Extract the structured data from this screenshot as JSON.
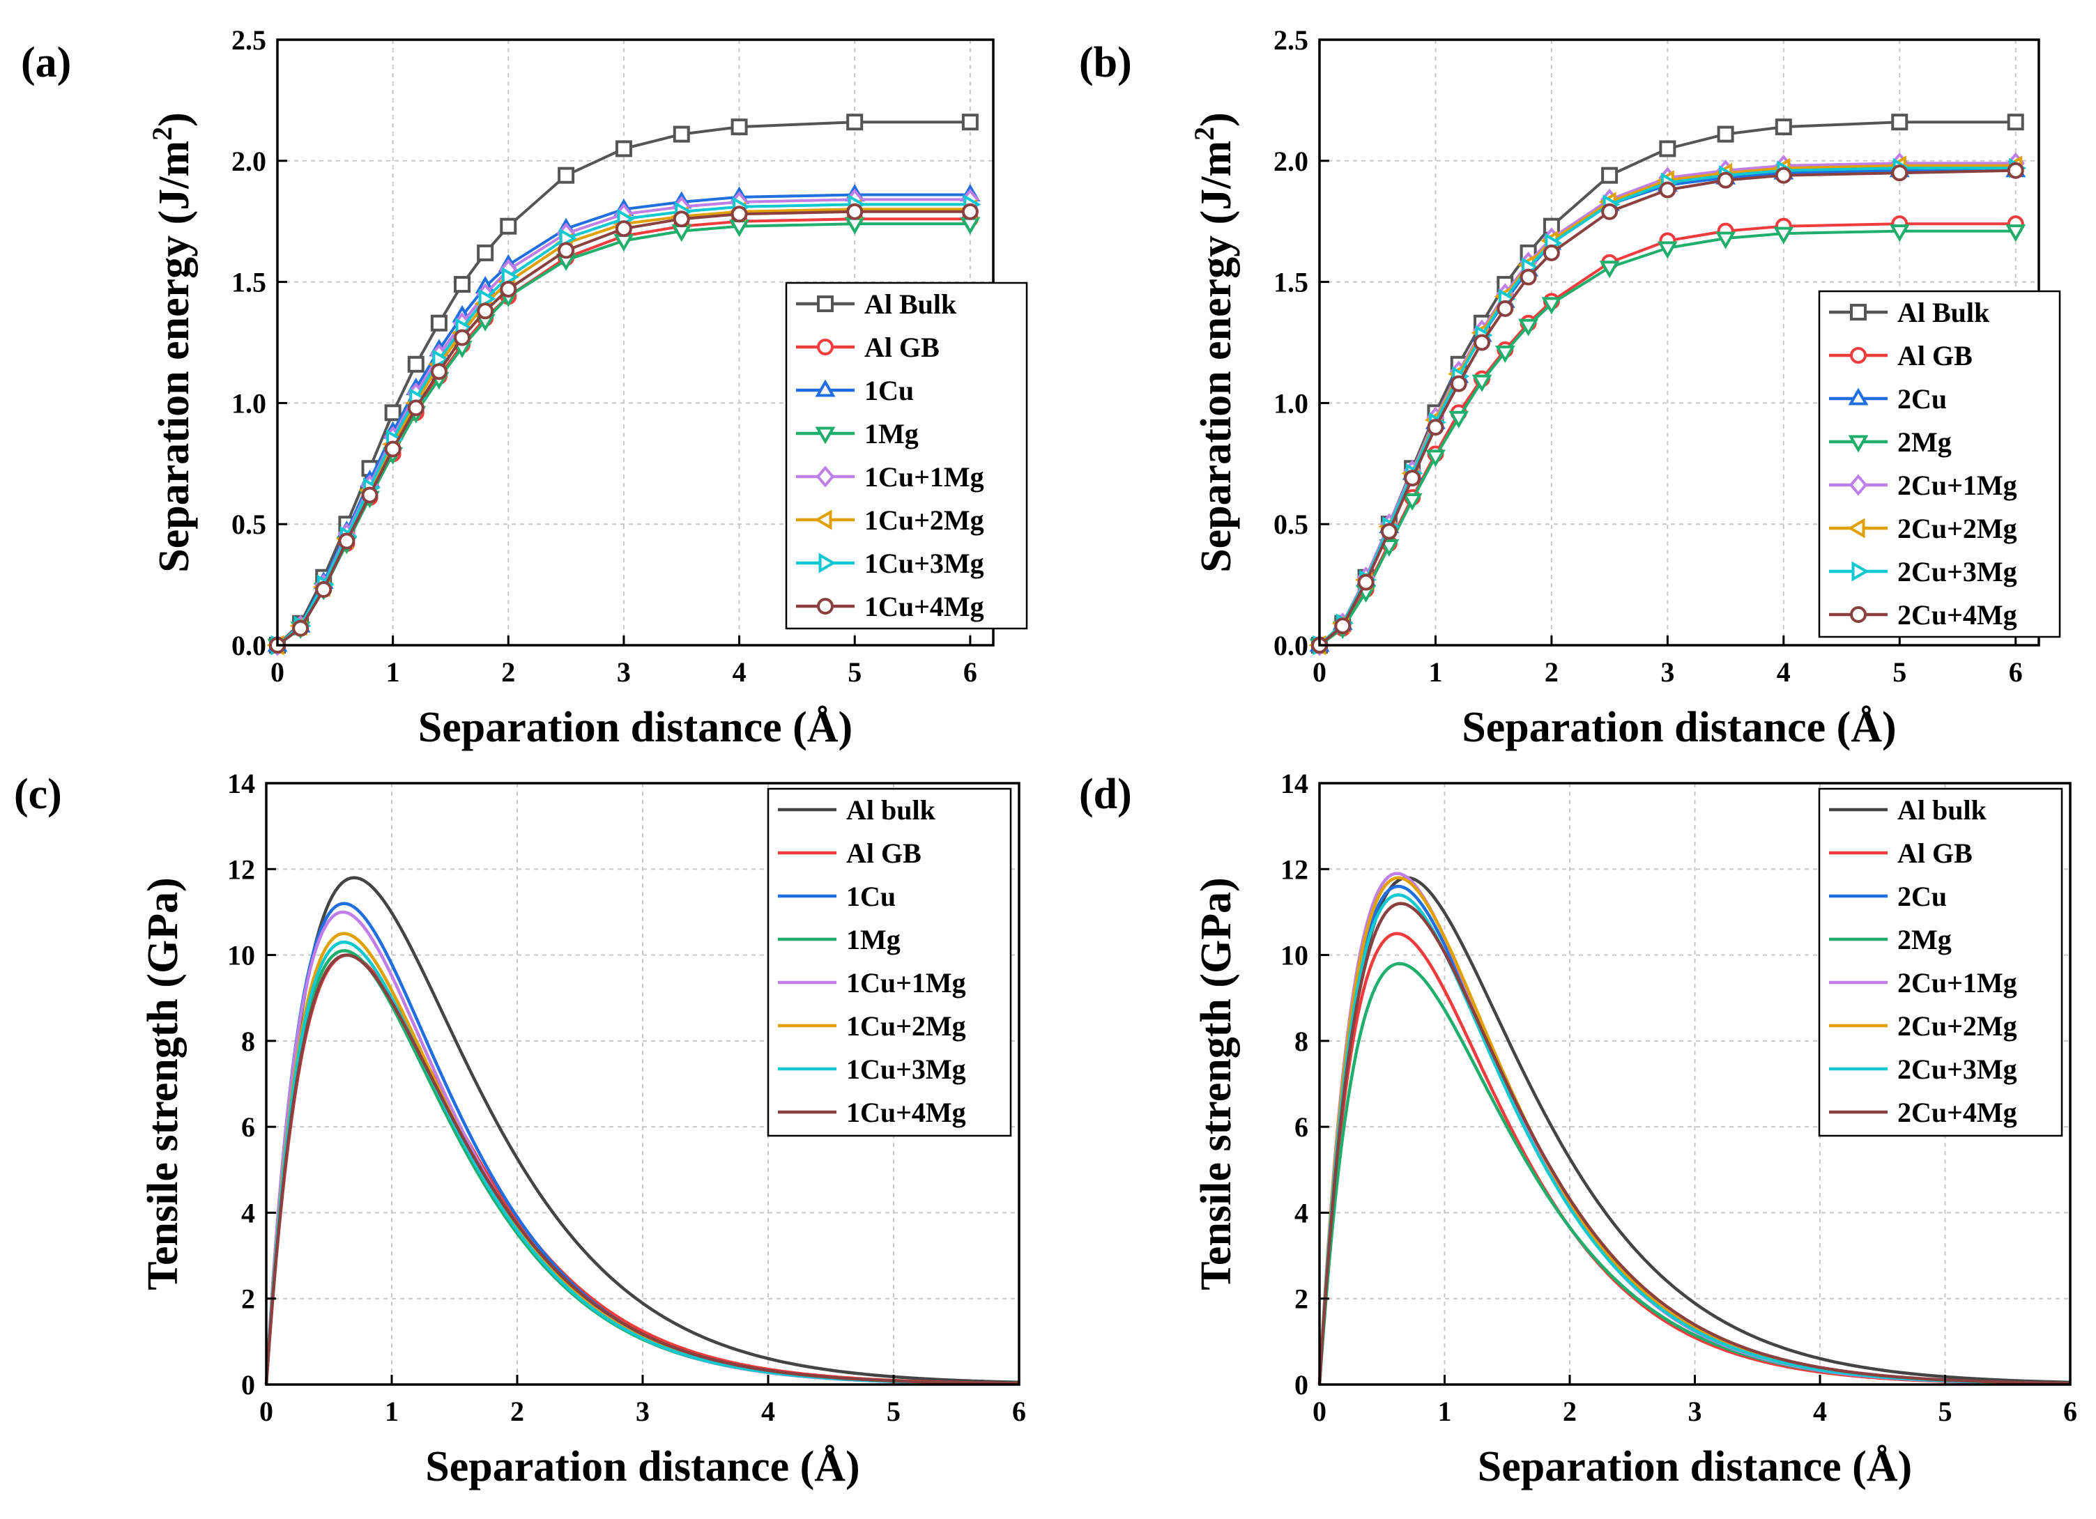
{
  "chart_data": [
    {
      "panel": "(a)",
      "type": "line",
      "markers": true,
      "xlabel": "Separation distance (Å)",
      "ylabel_main": "Separation energy (J/m",
      "ylabel_sup": "2",
      "ylabel_end": ")",
      "xlim": [
        0,
        6.2
      ],
      "ylim": [
        0,
        2.5
      ],
      "xticks": [
        "0",
        "1",
        "2",
        "3",
        "4",
        "5",
        "6"
      ],
      "yticks": [
        "0.0",
        "0.5",
        "1.0",
        "1.5",
        "2.0",
        "2.5"
      ],
      "grid": true,
      "x": [
        0,
        0.2,
        0.4,
        0.6,
        0.8,
        1.0,
        1.2,
        1.4,
        1.6,
        1.8,
        2.0,
        2.5,
        3.0,
        3.5,
        4.0,
        5.0,
        6.0
      ],
      "series": [
        {
          "name": "Al Bulk",
          "color": "#555555",
          "marker": "square",
          "saturation": 2.16,
          "values": [
            0.0,
            0.09,
            0.28,
            0.5,
            0.73,
            0.96,
            1.16,
            1.33,
            1.49,
            1.62,
            1.73,
            1.94,
            2.05,
            2.11,
            2.14,
            2.16,
            2.16
          ]
        },
        {
          "name": "Al GB",
          "color": "#f03c3c",
          "marker": "circle",
          "saturation": 1.76,
          "values": [
            0.0,
            0.07,
            0.23,
            0.42,
            0.61,
            0.79,
            0.96,
            1.11,
            1.24,
            1.35,
            1.44,
            1.6,
            1.69,
            1.73,
            1.75,
            1.76,
            1.76
          ]
        },
        {
          "name": "1Cu",
          "color": "#1f6fe0",
          "marker": "triangle-up",
          "saturation": 1.86,
          "values": [
            0.0,
            0.08,
            0.26,
            0.47,
            0.68,
            0.88,
            1.06,
            1.22,
            1.36,
            1.48,
            1.57,
            1.72,
            1.8,
            1.83,
            1.85,
            1.86,
            1.86
          ]
        },
        {
          "name": "1Mg",
          "color": "#1fae6b",
          "marker": "triangle-down",
          "saturation": 1.74,
          "values": [
            0.0,
            0.07,
            0.23,
            0.42,
            0.61,
            0.79,
            0.96,
            1.1,
            1.23,
            1.34,
            1.44,
            1.59,
            1.67,
            1.71,
            1.73,
            1.74,
            1.74
          ]
        },
        {
          "name": "1Cu+1Mg",
          "color": "#c07ee8",
          "marker": "diamond",
          "saturation": 1.84,
          "values": [
            0.0,
            0.08,
            0.25,
            0.46,
            0.66,
            0.86,
            1.04,
            1.2,
            1.33,
            1.45,
            1.55,
            1.7,
            1.78,
            1.81,
            1.83,
            1.84,
            1.84
          ]
        },
        {
          "name": "1Cu+2Mg",
          "color": "#e0a000",
          "marker": "triangle-left",
          "saturation": 1.8,
          "values": [
            0.0,
            0.08,
            0.24,
            0.44,
            0.64,
            0.83,
            1.0,
            1.16,
            1.29,
            1.41,
            1.5,
            1.66,
            1.74,
            1.77,
            1.79,
            1.8,
            1.8
          ]
        },
        {
          "name": "1Cu+3Mg",
          "color": "#10c8d0",
          "marker": "triangle-right",
          "saturation": 1.82,
          "values": [
            0.0,
            0.08,
            0.25,
            0.45,
            0.65,
            0.85,
            1.02,
            1.18,
            1.31,
            1.43,
            1.52,
            1.68,
            1.76,
            1.79,
            1.81,
            1.82,
            1.82
          ]
        },
        {
          "name": "1Cu+4Mg",
          "color": "#8b4040",
          "marker": "circle",
          "saturation": 1.79,
          "values": [
            0.0,
            0.07,
            0.23,
            0.43,
            0.62,
            0.81,
            0.98,
            1.13,
            1.27,
            1.38,
            1.47,
            1.63,
            1.72,
            1.76,
            1.78,
            1.79,
            1.79
          ]
        }
      ]
    },
    {
      "panel": "(b)",
      "type": "line",
      "markers": true,
      "xlabel": "Separation distance (Å)",
      "ylabel_main": "Separation energy (J/m",
      "ylabel_sup": "2",
      "ylabel_end": ")",
      "xlim": [
        0,
        6.2
      ],
      "ylim": [
        0,
        2.5
      ],
      "xticks": [
        "0",
        "1",
        "2",
        "3",
        "4",
        "5",
        "6"
      ],
      "yticks": [
        "0.0",
        "0.5",
        "1.0",
        "1.5",
        "2.0",
        "2.5"
      ],
      "grid": true,
      "x": [
        0,
        0.2,
        0.4,
        0.6,
        0.8,
        1.0,
        1.2,
        1.4,
        1.6,
        1.8,
        2.0,
        2.5,
        3.0,
        3.5,
        4.0,
        5.0,
        6.0
      ],
      "series": [
        {
          "name": "Al Bulk",
          "color": "#555555",
          "marker": "square",
          "saturation": 2.16,
          "values": [
            0.0,
            0.09,
            0.28,
            0.5,
            0.73,
            0.96,
            1.16,
            1.33,
            1.49,
            1.62,
            1.73,
            1.94,
            2.05,
            2.11,
            2.14,
            2.16,
            2.16
          ]
        },
        {
          "name": "Al GB",
          "color": "#f03c3c",
          "marker": "circle",
          "saturation": 1.74,
          "values": [
            0.0,
            0.07,
            0.23,
            0.42,
            0.61,
            0.79,
            0.96,
            1.1,
            1.22,
            1.33,
            1.42,
            1.58,
            1.67,
            1.71,
            1.73,
            1.74,
            1.74
          ]
        },
        {
          "name": "2Cu",
          "color": "#1f6fe0",
          "marker": "triangle-up",
          "saturation": 1.96,
          "values": [
            0.0,
            0.09,
            0.27,
            0.49,
            0.71,
            0.92,
            1.11,
            1.28,
            1.42,
            1.55,
            1.66,
            1.82,
            1.9,
            1.93,
            1.95,
            1.96,
            1.96
          ]
        },
        {
          "name": "2Mg",
          "color": "#1fae6b",
          "marker": "triangle-down",
          "saturation": 1.71,
          "values": [
            0.0,
            0.07,
            0.22,
            0.41,
            0.6,
            0.78,
            0.94,
            1.09,
            1.21,
            1.32,
            1.41,
            1.56,
            1.64,
            1.68,
            1.7,
            1.71,
            1.71
          ]
        },
        {
          "name": "2Cu+1Mg",
          "color": "#c07ee8",
          "marker": "diamond",
          "saturation": 1.99,
          "values": [
            0.0,
            0.09,
            0.28,
            0.5,
            0.72,
            0.94,
            1.13,
            1.3,
            1.45,
            1.58,
            1.68,
            1.84,
            1.93,
            1.96,
            1.98,
            1.99,
            1.99
          ]
        },
        {
          "name": "2Cu+2Mg",
          "color": "#e0a000",
          "marker": "triangle-left",
          "saturation": 1.98,
          "values": [
            0.0,
            0.09,
            0.27,
            0.49,
            0.71,
            0.93,
            1.12,
            1.29,
            1.44,
            1.57,
            1.67,
            1.83,
            1.92,
            1.95,
            1.97,
            1.98,
            1.98
          ]
        },
        {
          "name": "2Cu+3Mg",
          "color": "#10c8d0",
          "marker": "triangle-right",
          "saturation": 1.97,
          "values": [
            0.0,
            0.09,
            0.27,
            0.49,
            0.71,
            0.92,
            1.11,
            1.28,
            1.43,
            1.56,
            1.66,
            1.82,
            1.91,
            1.94,
            1.96,
            1.97,
            1.97
          ]
        },
        {
          "name": "2Cu+4Mg",
          "color": "#8b4040",
          "marker": "circle",
          "saturation": 1.96,
          "values": [
            0.0,
            0.08,
            0.26,
            0.47,
            0.69,
            0.9,
            1.08,
            1.25,
            1.39,
            1.52,
            1.62,
            1.79,
            1.88,
            1.92,
            1.94,
            1.95,
            1.96
          ]
        }
      ]
    },
    {
      "panel": "(c)",
      "type": "line",
      "markers": false,
      "xlabel": "Separation distance (Å)",
      "ylabel_main": "Tensile strength (GPa)",
      "ylabel_sup": "",
      "ylabel_end": "",
      "xlim": [
        0,
        6
      ],
      "ylim": [
        0,
        14
      ],
      "xticks": [
        "0",
        "1",
        "2",
        "3",
        "4",
        "5",
        "6"
      ],
      "yticks": [
        "0",
        "2",
        "4",
        "6",
        "8",
        "10",
        "12",
        "14"
      ],
      "grid": true,
      "series": [
        {
          "name": "Al bulk",
          "color": "#444444",
          "peak_strength": 11.8,
          "peak_distance": 0.7
        },
        {
          "name": "Al GB",
          "color": "#f03c3c",
          "peak_strength": 10.0,
          "peak_distance": 0.65
        },
        {
          "name": "1Cu",
          "color": "#1f6fe0",
          "peak_strength": 11.2,
          "peak_distance": 0.62
        },
        {
          "name": "1Mg",
          "color": "#1fae6b",
          "peak_strength": 10.1,
          "peak_distance": 0.62
        },
        {
          "name": "1Cu+1Mg",
          "color": "#c07ee8",
          "peak_strength": 11.0,
          "peak_distance": 0.61
        },
        {
          "name": "1Cu+2Mg",
          "color": "#e0a000",
          "peak_strength": 10.5,
          "peak_distance": 0.62
        },
        {
          "name": "1Cu+3Mg",
          "color": "#10c8d0",
          "peak_strength": 10.3,
          "peak_distance": 0.62
        },
        {
          "name": "1Cu+4Mg",
          "color": "#8b4040",
          "peak_strength": 10.0,
          "peak_distance": 0.64
        }
      ]
    },
    {
      "panel": "(d)",
      "type": "line",
      "markers": false,
      "xlabel": "Separation distance (Å)",
      "ylabel_main": "Tensile strength (GPa)",
      "ylabel_sup": "",
      "ylabel_end": "",
      "xlim": [
        0,
        6
      ],
      "ylim": [
        0,
        14
      ],
      "xticks": [
        "0",
        "1",
        "2",
        "3",
        "4",
        "5",
        "6"
      ],
      "yticks": [
        "0",
        "2",
        "4",
        "6",
        "8",
        "10",
        "12",
        "14"
      ],
      "grid": true,
      "series": [
        {
          "name": "Al bulk",
          "color": "#444444",
          "peak_strength": 11.8,
          "peak_distance": 0.7
        },
        {
          "name": "Al GB",
          "color": "#f03c3c",
          "peak_strength": 10.5,
          "peak_distance": 0.62
        },
        {
          "name": "2Cu",
          "color": "#1f6fe0",
          "peak_strength": 11.6,
          "peak_distance": 0.63
        },
        {
          "name": "2Mg",
          "color": "#1fae6b",
          "peak_strength": 9.8,
          "peak_distance": 0.64
        },
        {
          "name": "2Cu+1Mg",
          "color": "#c07ee8",
          "peak_strength": 11.9,
          "peak_distance": 0.62
        },
        {
          "name": "2Cu+2Mg",
          "color": "#e0a000",
          "peak_strength": 11.8,
          "peak_distance": 0.63
        },
        {
          "name": "2Cu+3Mg",
          "color": "#10c8d0",
          "peak_strength": 11.4,
          "peak_distance": 0.63
        },
        {
          "name": "2Cu+4Mg",
          "color": "#8b4040",
          "peak_strength": 11.2,
          "peak_distance": 0.65
        }
      ]
    }
  ]
}
